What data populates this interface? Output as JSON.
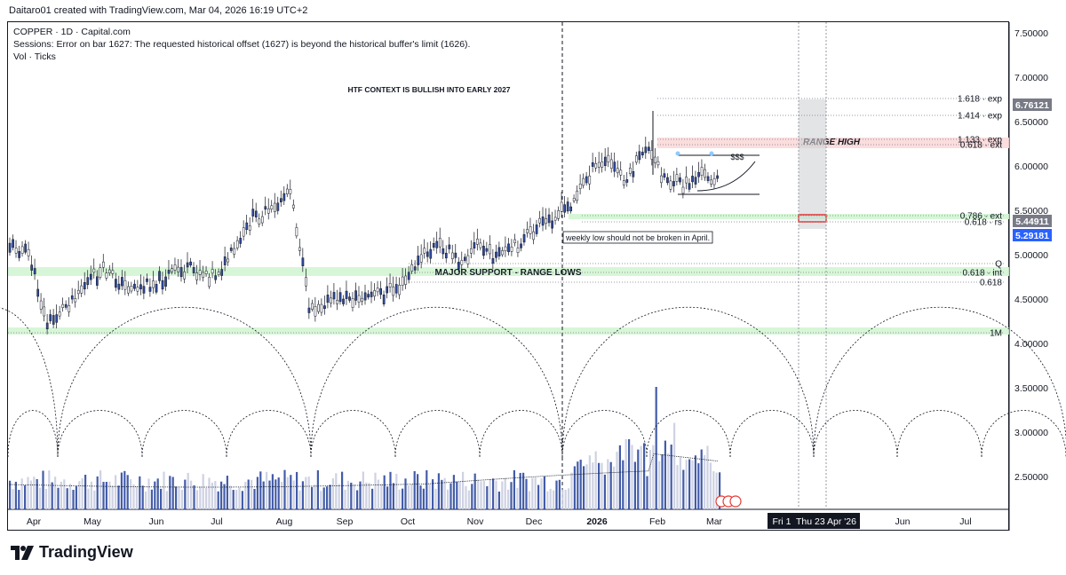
{
  "header": {
    "credit": "Daitaro01 created with TradingView.com, Mar 04, 2026 16:19 UTC+2",
    "legend": [
      "COPPER · 1D · Capital.com",
      "Sessions: Error on bar 1627: The requested historical offset (1627) is beyond the historical buffer's limit (1626).",
      "Vol · Ticks"
    ]
  },
  "branding": {
    "logo_text": "TradingView"
  },
  "chart_data": {
    "type": "line",
    "title": "",
    "ylim": [
      2.1,
      7.6
    ],
    "yticks": [
      "7.50000",
      "7.00000",
      "6.50000",
      "6.00000",
      "5.50000",
      "5.00000",
      "4.50000",
      "4.00000",
      "3.50000",
      "3.00000",
      "2.50000"
    ],
    "xticks": [
      "Apr",
      "May",
      "Jun",
      "Jul",
      "Aug",
      "Sep",
      "Oct",
      "Nov",
      "Dec",
      "2026",
      "Feb",
      "Mar",
      "Jun",
      "Jul"
    ],
    "x_highlight": [
      "Fri 1",
      "Thu 23 Apr '26"
    ],
    "price_series": {
      "name": "COPPER",
      "points": [
        [
          "Apr",
          5.15
        ],
        [
          "Apr",
          5.05
        ],
        [
          "Apr",
          4.25
        ],
        [
          "Apr",
          4.45
        ],
        [
          "Apr",
          4.7
        ],
        [
          "May",
          4.85
        ],
        [
          "May",
          4.7
        ],
        [
          "May",
          4.65
        ],
        [
          "Jun",
          4.75
        ],
        [
          "Jun",
          4.85
        ],
        [
          "Jun",
          4.85
        ],
        [
          "Jun",
          4.8
        ],
        [
          "Jul",
          5.05
        ],
        [
          "Jul",
          5.45
        ],
        [
          "Jul",
          5.5
        ],
        [
          "Jul",
          5.8
        ],
        [
          "Aug",
          4.45
        ],
        [
          "Aug",
          4.5
        ],
        [
          "Aug",
          4.55
        ],
        [
          "Sep",
          4.55
        ],
        [
          "Sep",
          4.6
        ],
        [
          "Sep",
          4.7
        ],
        [
          "Oct",
          5.0
        ],
        [
          "Oct",
          5.15
        ],
        [
          "Oct",
          4.95
        ],
        [
          "Nov",
          5.15
        ],
        [
          "Nov",
          5.0
        ],
        [
          "Nov",
          5.1
        ],
        [
          "Dec",
          5.3
        ],
        [
          "Dec",
          5.45
        ],
        [
          "Dec",
          5.6
        ],
        [
          "2026",
          5.95
        ],
        [
          "2026",
          6.1
        ],
        [
          "2026",
          5.85
        ],
        [
          "Feb",
          6.25
        ],
        [
          "Feb",
          5.9
        ],
        [
          "Feb",
          5.8
        ],
        [
          "Mar",
          5.95
        ],
        [
          "Mar",
          5.85
        ]
      ]
    },
    "volume_series": {
      "name": "Vol",
      "scale": "relative"
    },
    "levels": [
      {
        "label": "1.618 · exp",
        "value": 6.76
      },
      {
        "label": "1.414 · exp",
        "value": 6.57
      },
      {
        "label": "1.133 · exp",
        "value": 6.3
      },
      {
        "label": "0.618 · ext",
        "value": 6.24
      },
      {
        "label": "0.786 · ext",
        "value": 5.44
      },
      {
        "label": "0.618 · rs",
        "value": 5.37
      },
      {
        "label": "0.618 · int",
        "value": 4.8
      },
      {
        "label": "0.618",
        "value": 4.69
      },
      {
        "label": "Q",
        "value": 4.9
      },
      {
        "label": "1M",
        "value": 4.12
      }
    ],
    "zones": [
      {
        "label": "MAJOR SUPPORT - RANGE LOWS",
        "from": 4.76,
        "to": 4.86,
        "color": "#d3f5d3"
      },
      {
        "label": "",
        "from": 4.1,
        "to": 4.18,
        "color": "#d3f5d3"
      },
      {
        "label": "",
        "from": 5.4,
        "to": 5.46,
        "color": "#d3f5d3"
      },
      {
        "label": "RANGE HIGH",
        "from": 6.2,
        "to": 6.32,
        "color": "#fbd9d9"
      }
    ],
    "annotations": [
      "HTF CONTEXT IS BULLISH INTO EARLY 2027",
      "weekly low should not be broken in April.",
      "$$$"
    ],
    "price_tags": [
      {
        "value": "6.76121",
        "color": "#787b86"
      },
      {
        "value": "5.44911",
        "color": "#787b86"
      },
      {
        "value": "5.29181",
        "color": "#2962ff"
      }
    ]
  }
}
